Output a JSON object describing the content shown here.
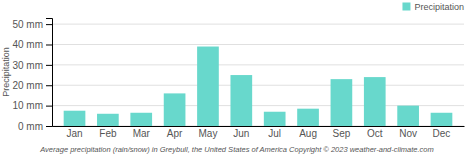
{
  "chart_data": {
    "type": "bar",
    "categories": [
      "Jan",
      "Feb",
      "Mar",
      "Apr",
      "May",
      "Jun",
      "Jul",
      "Aug",
      "Sep",
      "Oct",
      "Nov",
      "Dec"
    ],
    "series": [
      {
        "name": "Precipitation",
        "color": "#68d8cc",
        "values": [
          7.5,
          6.0,
          6.5,
          16.0,
          39.0,
          25.0,
          7.0,
          8.5,
          23.0,
          24.0,
          10.0,
          6.5
        ]
      }
    ],
    "ylabel": "Precipitation",
    "ylim": [
      0,
      53
    ],
    "yticks": [
      {
        "value": 0,
        "label": "0 mm"
      },
      {
        "value": 10,
        "label": "10 mm"
      },
      {
        "value": 20,
        "label": "20 mm"
      },
      {
        "value": 30,
        "label": "30 mm"
      },
      {
        "value": 40,
        "label": "40 mm"
      },
      {
        "value": 50,
        "label": "50 mm"
      }
    ],
    "grid": true,
    "legend": "top-right",
    "caption": "Average precipitation (rain/snow) in Greybull, the United States of America   Copyright © 2023  weather-and-climate.com"
  }
}
